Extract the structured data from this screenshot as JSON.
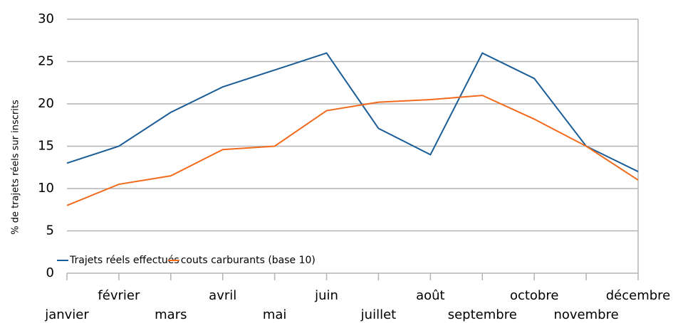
{
  "chart_data": {
    "type": "line",
    "y_label": "% de trajets réels sur inscrits",
    "categories": [
      "janvier",
      "février",
      "mars",
      "avril",
      "mai",
      "juin",
      "juillet",
      "août",
      "septembre",
      "octobre",
      "novembre",
      "décembre"
    ],
    "series": [
      {
        "name": "Trajets réels effectués",
        "color": "#1a5c96",
        "values": [
          13,
          15,
          19,
          22,
          24,
          26,
          17.1,
          14,
          26,
          23,
          15,
          12
        ]
      },
      {
        "name": "couts carburants (base 10)",
        "color": "#f26a1b",
        "values": [
          8,
          10.5,
          11.5,
          14.6,
          15,
          19.2,
          20.2,
          20.5,
          21,
          18.2,
          15,
          11
        ]
      }
    ],
    "ylim": [
      0,
      30
    ],
    "yticks": [
      0,
      5,
      10,
      15,
      20,
      25,
      30
    ],
    "grid": true,
    "legend": "bottom-left"
  }
}
